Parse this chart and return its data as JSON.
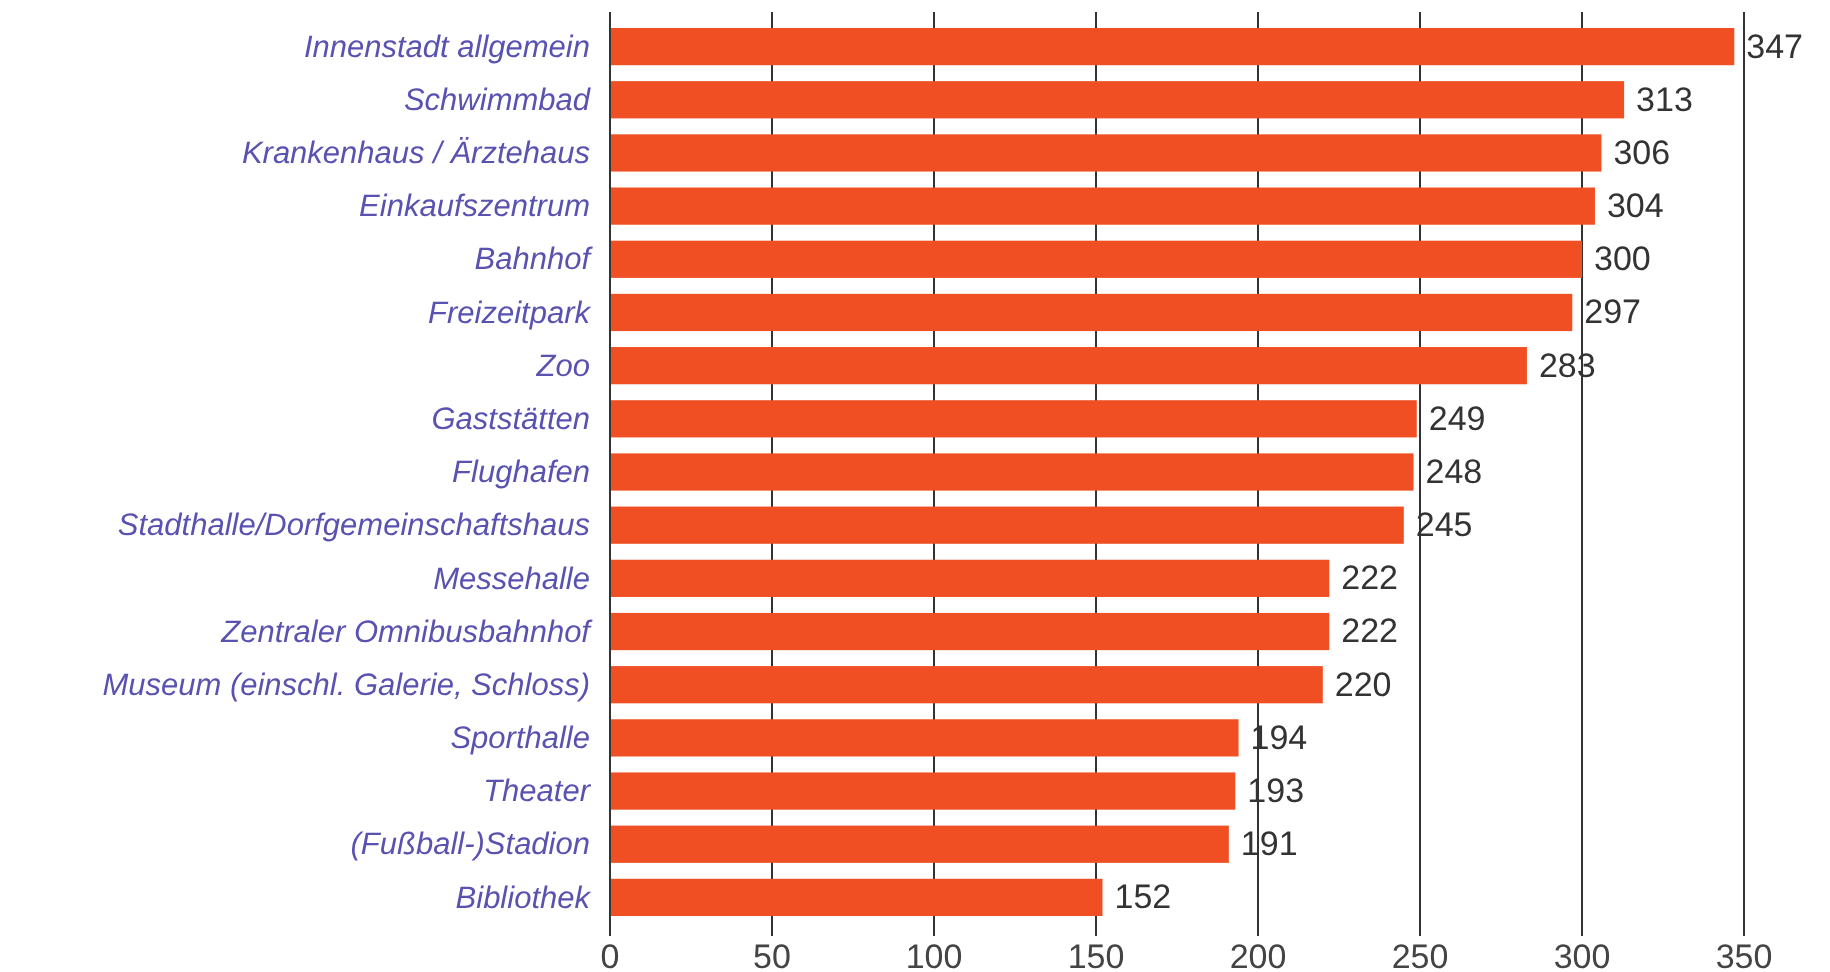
{
  "chart_data": {
    "type": "bar",
    "orientation": "horizontal",
    "categories": [
      "Innenstadt allgemein",
      "Schwimmbad",
      "Krankenhaus / Ärztehaus",
      "Einkaufszentrum",
      "Bahnhof",
      "Freizeitpark",
      "Zoo",
      "Gaststätten",
      "Flughafen",
      "Stadthalle/Dorfgemeinschaftshaus",
      "Messehalle",
      "Zentraler Omnibusbahnhof",
      "Museum (einschl. Galerie, Schloss)",
      "Sporthalle",
      "Theater",
      "(Fußball-)Stadion",
      "Bibliothek"
    ],
    "values": [
      347,
      313,
      306,
      304,
      300,
      297,
      283,
      249,
      248,
      245,
      222,
      222,
      220,
      194,
      193,
      191,
      152
    ],
    "color": "#f04e23",
    "xlim": [
      0,
      350
    ],
    "xticks": [
      0,
      50,
      100,
      150,
      200,
      250,
      300,
      350
    ],
    "grid": "x",
    "data_labels": true
  }
}
